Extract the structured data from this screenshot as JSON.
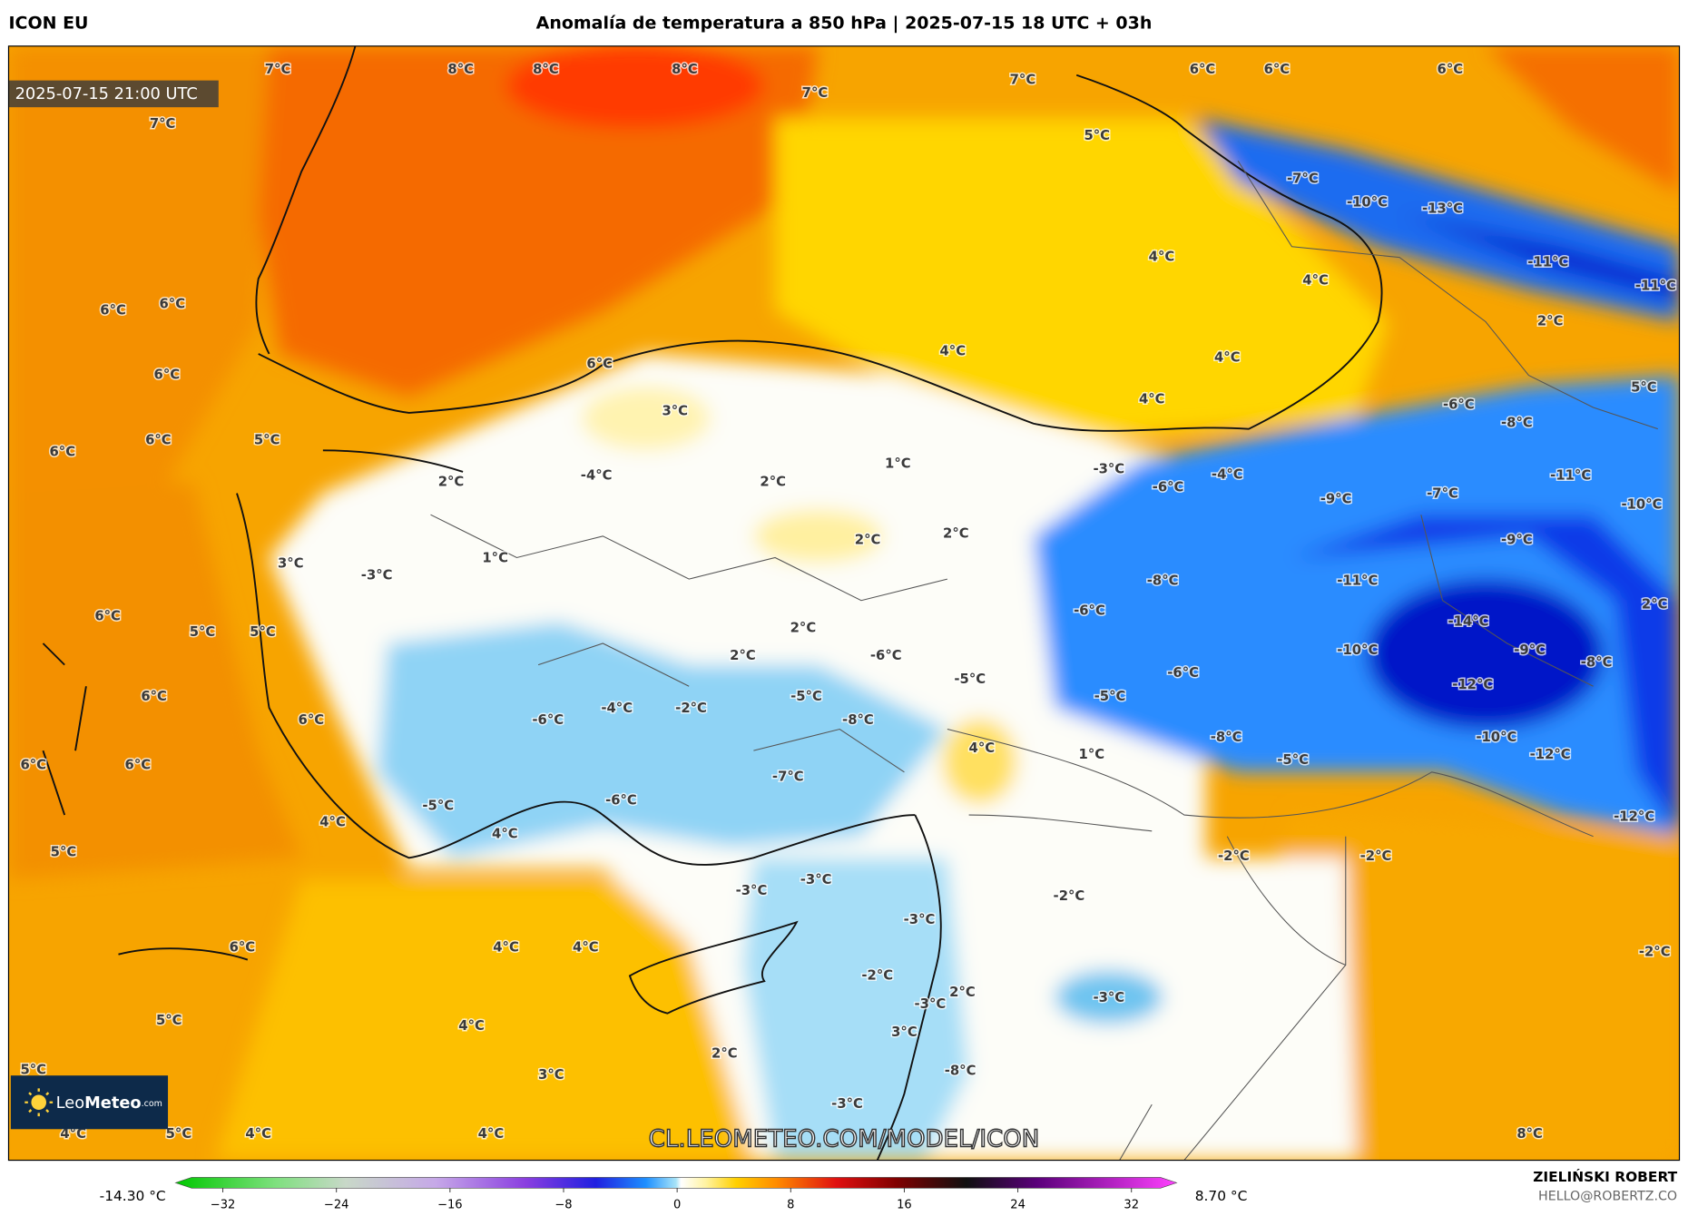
{
  "header": {
    "model": "ICON EU",
    "title": "Anomalía de temperatura a 850 hPa | 2025-07-15 18 UTC + 03h"
  },
  "timestamp": "2025-07-15 21:00 UTC",
  "map_labels": [
    "7°C",
    "8°C",
    "8°C",
    "8°C",
    "7°C",
    "7°C",
    "6°C",
    "6°C",
    "6°C",
    "7°C",
    "5°C",
    "-7°C",
    "-10°C",
    "-13°C",
    "4°C",
    "4°C",
    "-11°C",
    "-11°C",
    "6°C",
    "6°C",
    "2°C",
    "4°C",
    "4°C",
    "6°C",
    "6°C",
    "5°C",
    "4°C",
    "3°C",
    "-6°C",
    "-8°C",
    "6°C",
    "5°C",
    "6°C",
    "1°C",
    "-3°C",
    "-4°C",
    "-4°C",
    "-11°C",
    "2°C",
    "2°C",
    "-6°C",
    "-7°C",
    "-9°C",
    "-10°C",
    "2°C",
    "2°C",
    "-9°C",
    "3°C",
    "1°C",
    "-3°C",
    "-8°C",
    "-11°C",
    "2°C",
    "-6°C",
    "6°C",
    "-14°C",
    "2°C",
    "5°C",
    "5°C",
    "2°C",
    "-6°C",
    "-10°C",
    "-9°C",
    "-8°C",
    "-5°C",
    "-6°C",
    "-12°C",
    "6°C",
    "-5°C",
    "-5°C",
    "-4°C",
    "-2°C",
    "-6°C",
    "-8°C",
    "6°C",
    "4°C",
    "-8°C",
    "-10°C",
    "1°C",
    "6°C",
    "6°C",
    "-12°C",
    "-5°C",
    "-7°C",
    "-6°C",
    "-5°C",
    "-12°C",
    "4°C",
    "4°C",
    "5°C",
    "-2°C",
    "-2°C",
    "-3°C",
    "-3°C",
    "-2°C",
    "-3°C",
    "6°C",
    "4°C",
    "4°C",
    "-2°C",
    "-2°C",
    "2°C",
    "-3°C",
    "-3°C",
    "5°C",
    "4°C",
    "3°C",
    "2°C",
    "-8°C",
    "5°C",
    "3°C",
    "-3°C",
    "4°C",
    "5°C",
    "4°C",
    "4°C",
    "8°C"
  ],
  "watermark": "CL.LEOMETEO.COM/MODEL/ICON",
  "logo": {
    "part1": "Leo",
    "part2": "Meteo",
    "suffix": ".com"
  },
  "colorbar": {
    "min_label": "-14.30 °C",
    "max_label": "8.70 °C",
    "ticks": [
      {
        "value": -32,
        "label": "−32"
      },
      {
        "value": -24,
        "label": "−24"
      },
      {
        "value": -16,
        "label": "−16"
      },
      {
        "value": -8,
        "label": "−8"
      },
      0,
      8,
      16,
      24,
      32
    ]
  },
  "credits": {
    "author": "ZIELIŃSKI ROBERT",
    "email": "HELLO@ROBERTZ.CO"
  }
}
